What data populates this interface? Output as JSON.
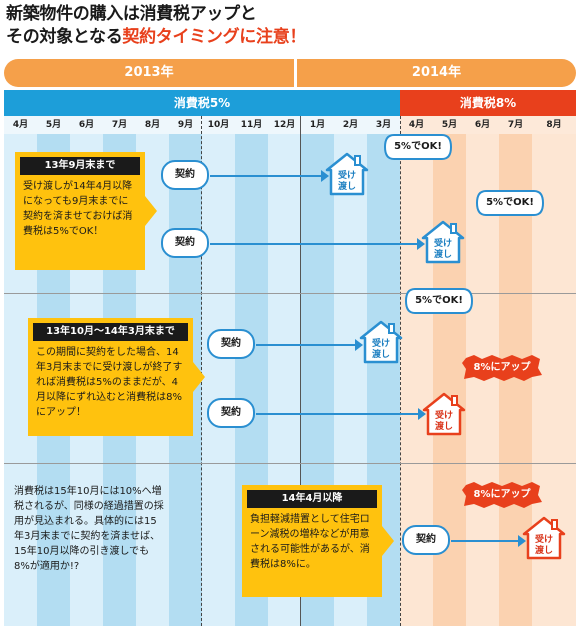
{
  "title": {
    "line1": "新築物件の購入は消費税アップと",
    "line2_prefix": "その対象となる",
    "line2_accent": "契約タイミングに注意！"
  },
  "years": {
    "y2013": "2013年",
    "y2014": "2014年"
  },
  "tax": {
    "rate5": "消費税5%",
    "rate8": "消費税8%"
  },
  "months": [
    "4月",
    "5月",
    "6月",
    "7月",
    "8月",
    "9月",
    "10月",
    "11月",
    "12月",
    "1月",
    "2月",
    "3月",
    "4月",
    "5月",
    "6月",
    "7月",
    "8月"
  ],
  "colors": {
    "blue_dark": "#b3ddf2",
    "blue_light": "#daeffa",
    "orange_dark": "#fbd2b0",
    "orange_light": "#fde6d3",
    "arrow": "#2a8fd1",
    "badge_red": "#e8401c",
    "box_yellow": "#ffc20e"
  },
  "sections": [
    {
      "header": "13年9月末まで",
      "body": "受け渡しが14年4月以降になっても9月末までに契約を済ませておけば消費税は5%でOK！"
    },
    {
      "header": "13年10月〜14年3月末まで",
      "body": "この期間に契約をした場合、14年3月末までに受け渡しが終了すれば消費税は5%のままだが、4月以降にずれ込むと消費税は8%にアップ！"
    },
    {
      "header": "14年4月以降",
      "body": "負担軽減措置として住宅ローン減税の増枠などが用意される可能性があるが、消費税は8%に。"
    }
  ],
  "labels": {
    "contract": "契約",
    "delivery_line1": "受け",
    "delivery_line2": "渡し",
    "ok5": "5%でOK!",
    "up8": "8%にアップ"
  },
  "note": "消費税は15年10月には10%へ増税されるが、同様の経過措置の採用が見込まれる。具体的には15年3月末までに契約を済ませば、15年10月以降の引き渡しでも8%が適用か!?"
}
